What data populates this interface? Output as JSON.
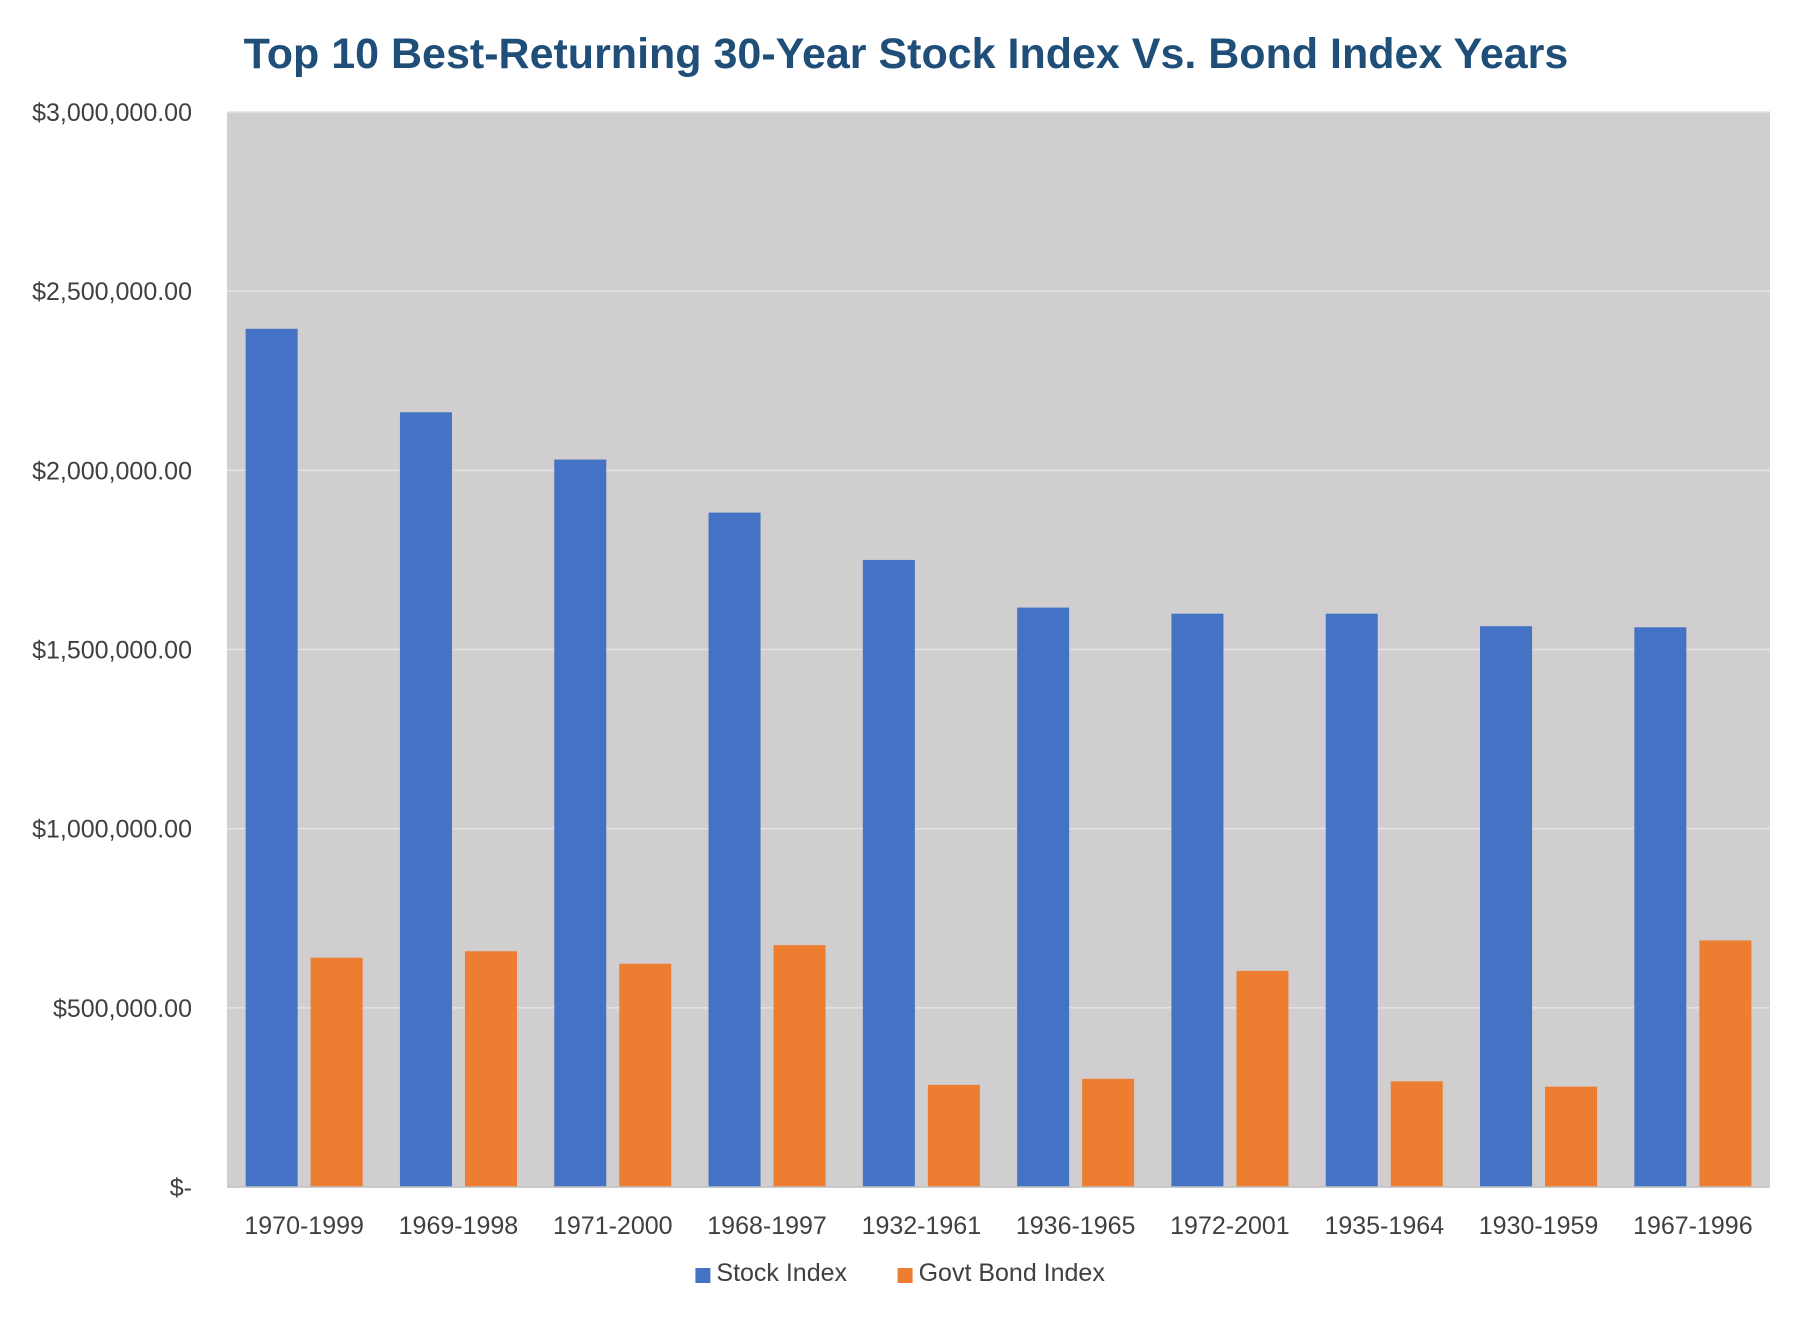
{
  "chart_data": {
    "type": "bar",
    "title": "Top 10 Best-Returning 30-Year Stock Index Vs. Bond Index Years",
    "xlabel": "",
    "ylabel": "",
    "ylim": [
      0,
      3000000
    ],
    "y_ticks": [
      0,
      500000,
      1000000,
      1500000,
      2000000,
      2500000,
      3000000
    ],
    "y_tick_labels": [
      "$-",
      "$500,000.00",
      "$1,000,000.00",
      "$1,500,000.00",
      "$2,000,000.00",
      "$2,500,000.00",
      "$3,000,000.00"
    ],
    "grid": true,
    "legend_position": "bottom",
    "categories": [
      "1970-1999",
      "1969-1998",
      "1971-2000",
      "1968-1997",
      "1932-1961",
      "1936-1965",
      "1972-2001",
      "1935-1964",
      "1930-1959",
      "1967-1996"
    ],
    "series": [
      {
        "name": "Stock Index",
        "color": "#4472c4",
        "values": [
          2395000,
          2162000,
          2030000,
          1882000,
          1750000,
          1617000,
          1600000,
          1600000,
          1565000,
          1562000
        ]
      },
      {
        "name": "Govt Bond Index",
        "color": "#ed7d31",
        "values": [
          640000,
          658000,
          623000,
          675000,
          285000,
          302000,
          603000,
          295000,
          280000,
          688000
        ]
      }
    ],
    "plot_background": "#d0cecf"
  }
}
